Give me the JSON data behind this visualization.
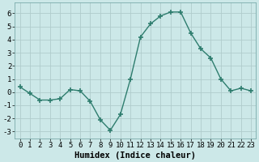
{
  "x": [
    0,
    1,
    2,
    3,
    4,
    5,
    6,
    7,
    8,
    9,
    10,
    11,
    12,
    13,
    14,
    15,
    16,
    17,
    18,
    19,
    20,
    21,
    22,
    23
  ],
  "y": [
    0.4,
    -0.1,
    -0.6,
    -0.6,
    -0.5,
    0.2,
    0.1,
    -0.7,
    -2.1,
    -2.9,
    -1.7,
    1.0,
    4.2,
    5.2,
    5.8,
    6.1,
    6.1,
    4.5,
    3.3,
    2.6,
    1.0,
    0.1,
    0.3,
    0.1
  ],
  "line_color": "#2e7d6e",
  "marker": "+",
  "markersize": 4,
  "markeredgewidth": 1.2,
  "linewidth": 1.0,
  "bg_color": "#cce8e8",
  "grid_color": "#b0cccc",
  "xlabel": "Humidex (Indice chaleur)",
  "xlim": [
    -0.5,
    23.5
  ],
  "ylim": [
    -3.5,
    6.8
  ],
  "yticks": [
    -3,
    -2,
    -1,
    0,
    1,
    2,
    3,
    4,
    5,
    6
  ],
  "xticks": [
    0,
    1,
    2,
    3,
    4,
    5,
    6,
    7,
    8,
    9,
    10,
    11,
    12,
    13,
    14,
    15,
    16,
    17,
    18,
    19,
    20,
    21,
    22,
    23
  ],
  "tick_fontsize": 6.5,
  "xlabel_fontsize": 7.5
}
